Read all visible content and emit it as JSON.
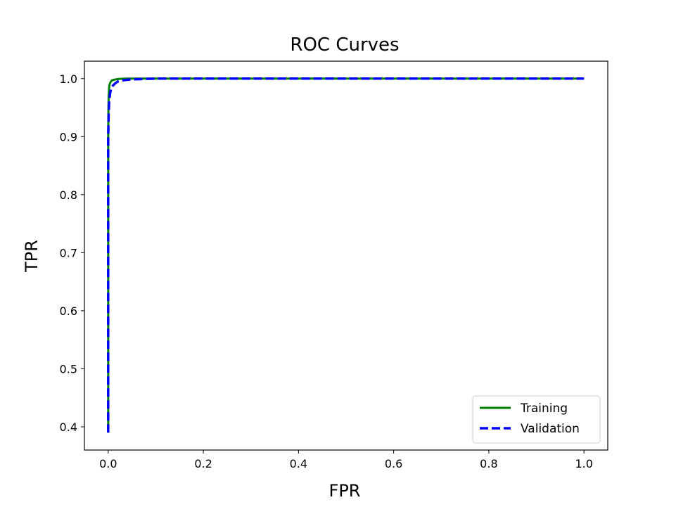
{
  "chart_data": {
    "type": "line",
    "title": "ROC Curves",
    "xlabel": "FPR",
    "ylabel": "TPR",
    "xlim": [
      -0.05,
      1.05
    ],
    "ylim": [
      0.36,
      1.03
    ],
    "xticks": [
      0.0,
      0.2,
      0.4,
      0.6,
      0.8,
      1.0
    ],
    "xtick_labels": [
      "0.0",
      "0.2",
      "0.4",
      "0.6",
      "0.8",
      "1.0"
    ],
    "yticks": [
      0.4,
      0.5,
      0.6,
      0.7,
      0.8,
      0.9,
      1.0
    ],
    "ytick_labels": [
      "0.4",
      "0.5",
      "0.6",
      "0.7",
      "0.8",
      "0.9",
      "1.0"
    ],
    "grid": false,
    "legend_position": "bottom-right",
    "series": [
      {
        "name": "Training",
        "color": "#008000",
        "style": "solid",
        "x": [
          0.0,
          0.0,
          0.0005,
          0.001,
          0.002,
          0.003,
          0.005,
          0.008,
          0.012,
          0.018,
          0.025,
          0.04,
          0.06,
          0.1,
          0.2,
          0.4,
          0.6,
          0.8,
          1.0
        ],
        "y": [
          0.39,
          0.9,
          0.95,
          0.97,
          0.985,
          0.99,
          0.994,
          0.997,
          0.998,
          0.999,
          0.9995,
          1.0,
          1.0,
          1.0,
          1.0,
          1.0,
          1.0,
          1.0,
          1.0
        ]
      },
      {
        "name": "Validation",
        "color": "#0000ff",
        "style": "dashed",
        "x": [
          0.0,
          0.0,
          0.001,
          0.002,
          0.004,
          0.006,
          0.01,
          0.015,
          0.02,
          0.03,
          0.045,
          0.06,
          0.08,
          0.1,
          0.2,
          0.4,
          0.6,
          0.8,
          1.0
        ],
        "y": [
          0.39,
          0.9,
          0.94,
          0.96,
          0.975,
          0.982,
          0.988,
          0.992,
          0.995,
          0.997,
          0.9985,
          0.999,
          0.9995,
          1.0,
          1.0,
          1.0,
          1.0,
          1.0,
          1.0
        ]
      }
    ]
  }
}
